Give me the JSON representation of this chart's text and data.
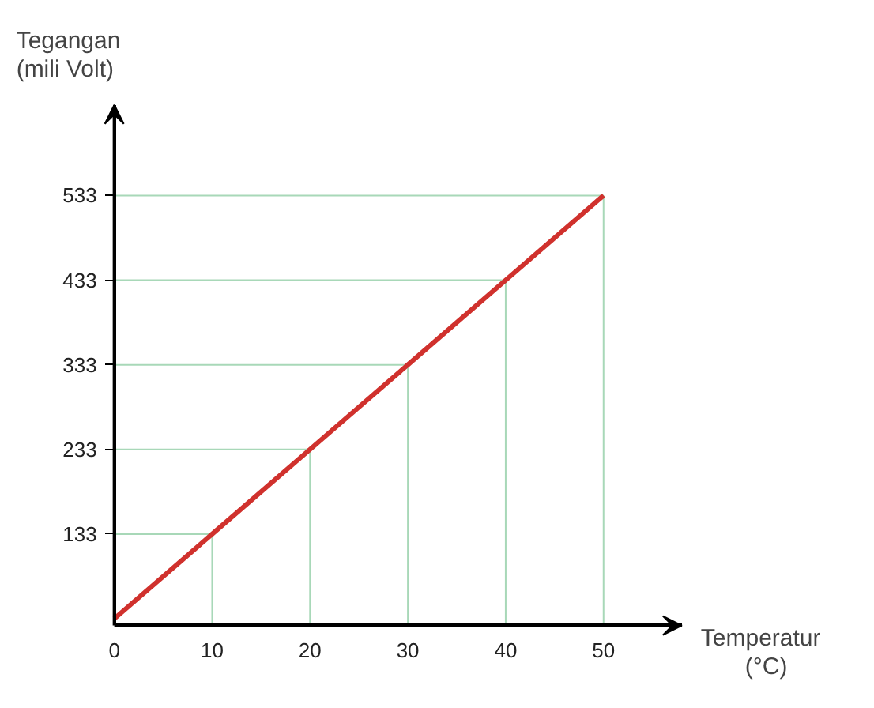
{
  "chart_data": {
    "type": "line",
    "xlabel": "Temperatur\n(°C)",
    "ylabel": "Tegangan\n(mili Volt)",
    "x": [
      0,
      10,
      20,
      30,
      40,
      50
    ],
    "series": [
      {
        "color": "#d0312d",
        "values": [
          33,
          133,
          233,
          333,
          433,
          533
        ]
      }
    ],
    "xlim": [
      0,
      58
    ],
    "ylim": [
      25,
      640
    ],
    "xticks": [
      0,
      10,
      20,
      30,
      40,
      50
    ],
    "yticks": [
      133,
      233,
      333,
      433,
      533
    ],
    "ref_lines": [
      {
        "axis": "x",
        "value": 10,
        "color": "#a8d8b8"
      },
      {
        "axis": "x",
        "value": 20,
        "color": "#a8d8b8"
      },
      {
        "axis": "x",
        "value": 30,
        "color": "#a8d8b8"
      },
      {
        "axis": "x",
        "value": 40,
        "color": "#a8d8b8"
      },
      {
        "axis": "x",
        "value": 50,
        "color": "#a8d8b8"
      },
      {
        "axis": "y",
        "value": 133,
        "color": "#a8d8b8"
      },
      {
        "axis": "y",
        "value": 233,
        "color": "#a8d8b8"
      },
      {
        "axis": "y",
        "value": 333,
        "color": "#a8d8b8"
      },
      {
        "axis": "y",
        "value": 433,
        "color": "#a8d8b8"
      },
      {
        "axis": "y",
        "value": 533,
        "color": "#a8d8b8"
      }
    ],
    "marker": "none",
    "line_style": "solid"
  }
}
